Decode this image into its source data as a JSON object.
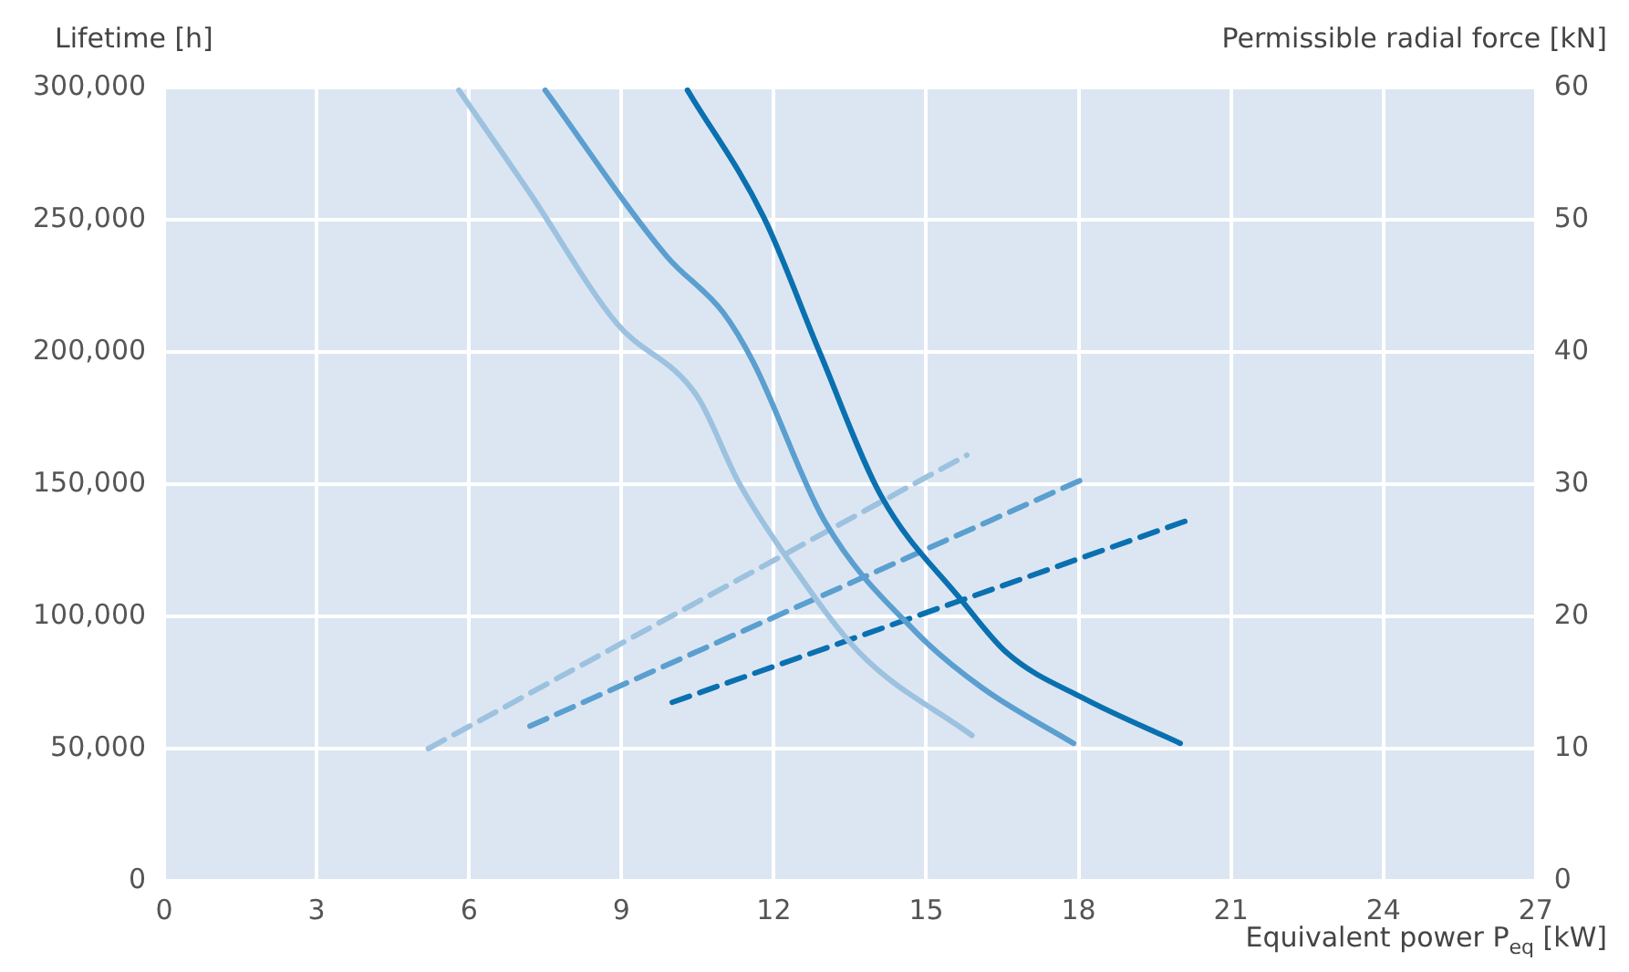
{
  "chart_data": {
    "type": "line",
    "ylabel": "Lifetime [h]",
    "y2label": "Permissible radial force [kN]",
    "xlabel": "Equivalent power P$_{eq}$ [kW]",
    "xlim": [
      0,
      27
    ],
    "xticks": [
      0,
      3,
      6,
      9,
      12,
      15,
      18,
      21,
      24,
      27
    ],
    "ylim": [
      0,
      300000
    ],
    "yticks": [
      {
        "value": 0,
        "label": "0"
      },
      {
        "value": 50000,
        "label": "50,000"
      },
      {
        "value": 100000,
        "label": "100,000"
      },
      {
        "value": 150000,
        "label": "150,000"
      },
      {
        "value": 200000,
        "label": "200,000"
      },
      {
        "value": 250000,
        "label": "250,000"
      },
      {
        "value": 300000,
        "label": "300,000"
      }
    ],
    "y2lim": [
      0,
      60
    ],
    "y2ticks": [
      0,
      10,
      20,
      30,
      40,
      50,
      60
    ],
    "grid": true,
    "legend": false,
    "marker": "none",
    "series": [
      {
        "color": "#9cc2e0",
        "axis": "y",
        "line_style": "solid",
        "x": [
          5.8,
          7.2,
          8.9,
          10.5,
          11.3,
          12.3,
          13.7,
          15.9
        ],
        "values": [
          299000,
          260000,
          211000,
          183000,
          151000,
          121000,
          86000,
          55000
        ]
      },
      {
        "color": "#5a9fcf",
        "axis": "y",
        "line_style": "solid",
        "x": [
          7.5,
          9.9,
          11.0,
          11.6,
          13.0,
          14.8,
          16.1,
          17.9
        ],
        "values": [
          299000,
          236000,
          215000,
          196000,
          136000,
          94000,
          73000,
          52000
        ]
      },
      {
        "color": "#0a70b0",
        "axis": "y",
        "line_style": "solid",
        "x": [
          10.3,
          11.8,
          12.9,
          14.1,
          15.7,
          16.6,
          18.1,
          20.0
        ],
        "values": [
          299000,
          251000,
          200000,
          146000,
          106000,
          86000,
          69000,
          52000
        ]
      },
      {
        "color": "#9cc2e0",
        "axis": "y2",
        "line_style": "dashed",
        "x": [
          5.2,
          15.8
        ],
        "values": [
          10.0,
          32.2
        ]
      },
      {
        "color": "#5a9fcf",
        "axis": "y2",
        "line_style": "dashed",
        "x": [
          7.2,
          18.1
        ],
        "values": [
          11.7,
          30.4
        ]
      },
      {
        "color": "#0a70b0",
        "axis": "y2",
        "line_style": "dashed",
        "x": [
          10.0,
          20.1
        ],
        "values": [
          13.5,
          27.2
        ]
      }
    ]
  }
}
